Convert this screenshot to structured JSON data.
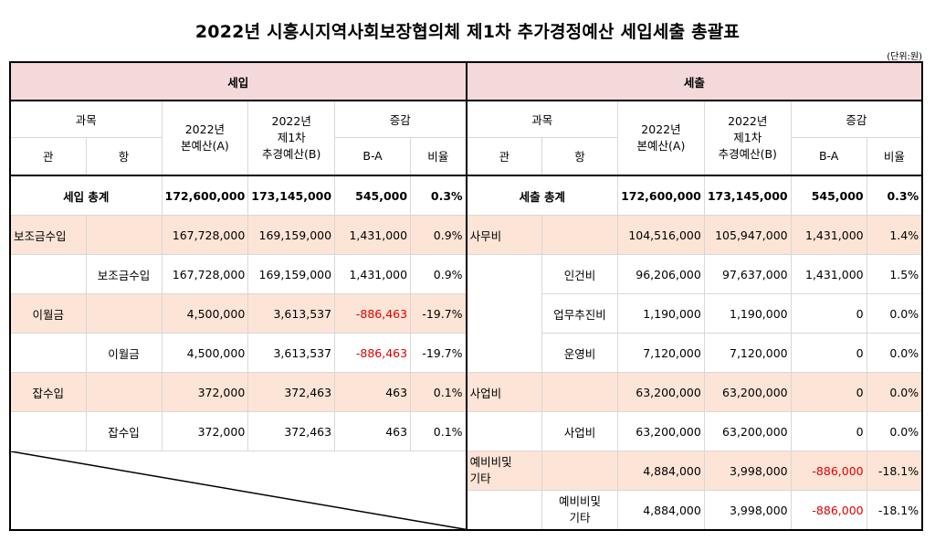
{
  "title": "2022년 시흥시지역사회보장협의체 제1차 추가경정예산 세입세출 총괄표",
  "unit": "(단위:원)",
  "income": {
    "section": "세입",
    "headers": {
      "subject": "과목",
      "kwan": "관",
      "hang": "항",
      "base": "2022년\n본예산(A)",
      "supp": "2022년\n제1차\n추경예산(B)",
      "change": "증감",
      "diff": "B-A",
      "ratio": "비율"
    },
    "total": {
      "label": "세입 총계",
      "base": "172,600,000",
      "supp": "173,145,000",
      "diff": "545,000",
      "ratio": "0.3%"
    },
    "rows": [
      {
        "kwan": "보조금수입",
        "hang": "",
        "base": "167,728,000",
        "supp": "169,159,000",
        "diff": "1,431,000",
        "ratio": "0.9%"
      },
      {
        "kwan": "",
        "hang": "보조금수입",
        "base": "167,728,000",
        "supp": "169,159,000",
        "diff": "1,431,000",
        "ratio": "0.9%"
      },
      {
        "kwan": "이월금",
        "hang": "",
        "base": "4,500,000",
        "supp": "3,613,537",
        "diff": "-886,463",
        "ratio": "-19.7%"
      },
      {
        "kwan": "",
        "hang": "이월금",
        "base": "4,500,000",
        "supp": "3,613,537",
        "diff": "-886,463",
        "ratio": "-19.7%"
      },
      {
        "kwan": "잡수입",
        "hang": "",
        "base": "372,000",
        "supp": "372,463",
        "diff": "463",
        "ratio": "0.1%"
      },
      {
        "kwan": "",
        "hang": "잡수입",
        "base": "372,000",
        "supp": "372,463",
        "diff": "463",
        "ratio": "0.1%"
      }
    ]
  },
  "expense": {
    "section": "세출",
    "headers": {
      "subject": "과목",
      "kwan": "관",
      "hang": "항",
      "base": "2022년\n본예산(A)",
      "supp": "2022년\n제1차\n추경예산(B)",
      "change": "증감",
      "diff": "B-A",
      "ratio": "비율"
    },
    "total": {
      "label": "세출 총계",
      "base": "172,600,000",
      "supp": "173,145,000",
      "diff": "545,000",
      "ratio": "0.3%"
    },
    "rows": [
      {
        "kwan": "사무비",
        "hang": "",
        "base": "104,516,000",
        "supp": "105,947,000",
        "diff": "1,431,000",
        "ratio": "1.4%"
      },
      {
        "kwan": "",
        "hang": "인건비",
        "base": "96,206,000",
        "supp": "97,637,000",
        "diff": "1,431,000",
        "ratio": "1.5%"
      },
      {
        "kwan": "",
        "hang": "업무추진비",
        "base": "1,190,000",
        "supp": "1,190,000",
        "diff": "0",
        "ratio": "0.0%"
      },
      {
        "kwan": "",
        "hang": "운영비",
        "base": "7,120,000",
        "supp": "7,120,000",
        "diff": "0",
        "ratio": "0.0%"
      },
      {
        "kwan": "사업비",
        "hang": "",
        "base": "63,200,000",
        "supp": "63,200,000",
        "diff": "0",
        "ratio": "0.0%"
      },
      {
        "kwan": "",
        "hang": "사업비",
        "base": "63,200,000",
        "supp": "63,200,000",
        "diff": "0",
        "ratio": "0.0%"
      },
      {
        "kwan": "예비비및\n기타",
        "hang": "",
        "base": "4,884,000",
        "supp": "3,998,000",
        "diff": "-886,000",
        "ratio": "-18.1%"
      },
      {
        "kwan": "",
        "hang": "예비비및\n기타",
        "base": "4,884,000",
        "supp": "3,998,000",
        "diff": "-886,000",
        "ratio": "-18.1%"
      }
    ]
  },
  "colors": {
    "section_header": "#f3d9d9",
    "highlight_row": "#fce4d6",
    "negative": "#e00000"
  }
}
